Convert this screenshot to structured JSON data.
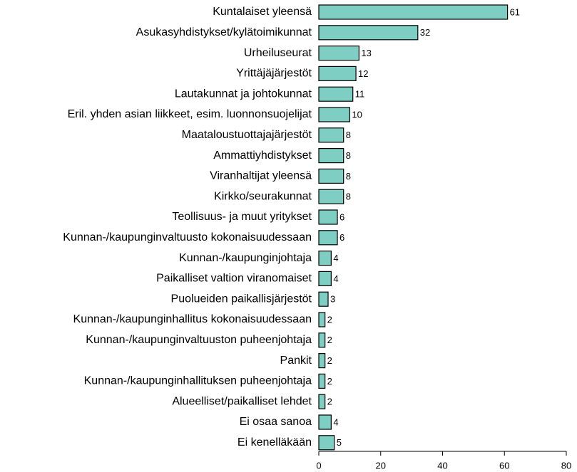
{
  "chart_data": {
    "type": "bar",
    "orientation": "horizontal",
    "categories": [
      "Kuntalaiset yleensä",
      "Asukasyhdistykset/kylätoimikunnat",
      "Urheiluseurat",
      "Yrittäjäjärjestöt",
      "Lautakunnat ja johtokunnat",
      "Eril. yhden asian liikkeet, esim. luonnonsuojelijat",
      "Maataloustuottajajärjestöt",
      "Ammattiyhdistykset",
      "Viranhaltijat yleensä",
      "Kirkko/seurakunnat",
      "Teollisuus- ja muut yritykset",
      "Kunnan-/kaupunginvaltuusto kokonaisuudessaan",
      "Kunnan-/kaupunginjohtaja",
      "Paikalliset valtion viranomaiset",
      "Puolueiden paikallisjärjestöt",
      "Kunnan-/kaupunginhallitus kokonaisuudessaan",
      "Kunnan-/kaupunginvaltuuston puheenjohtaja",
      "Pankit",
      "Kunnan-/kaupunginhallituksen puheenjohtaja",
      "Alueelliset/paikalliset lehdet",
      "Ei osaa sanoa",
      "Ei kenelläkään"
    ],
    "values": [
      61,
      32,
      13,
      12,
      11,
      10,
      8,
      8,
      8,
      8,
      6,
      6,
      4,
      4,
      3,
      2,
      2,
      2,
      2,
      2,
      4,
      5
    ],
    "color": "#7fcec3",
    "xlim": [
      0,
      80
    ],
    "xticks": [
      0,
      20,
      40,
      60,
      80
    ]
  }
}
